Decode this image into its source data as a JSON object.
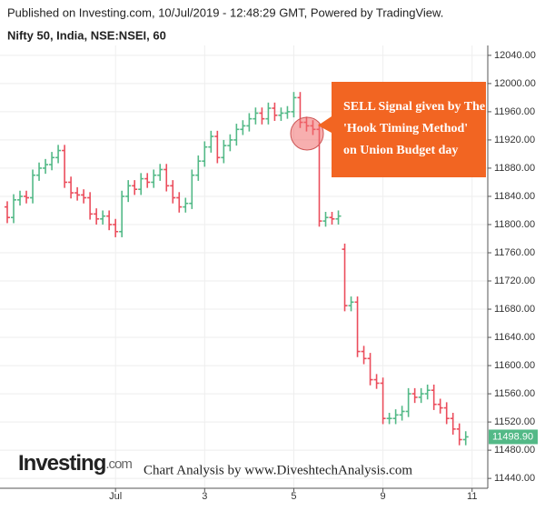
{
  "chart_data": {
    "type": "ohlc",
    "header": "Published on Investing.com, 10/Jul/2019 - 12:48:29 GMT, Powered by TradingView.",
    "title": "Nifty 50, India, NSE:NSEI, 60",
    "annotation": [
      "SELL Signal given by The",
      "'Hook Timing Method'",
      "on Union Budget day"
    ],
    "logo": {
      "main": "Investing",
      "suffix": ".com"
    },
    "footer": "Chart Analysis by www.DiveshtechAnalysis.com",
    "up_color": "#53b987",
    "down_color": "#eb4d5c",
    "categories": [
      null,
      null,
      null,
      null,
      null,
      null,
      null,
      null,
      null,
      null,
      null,
      null,
      null,
      null,
      null,
      null,
      null,
      "Jul",
      null,
      null,
      null,
      null,
      null,
      null,
      null,
      null,
      null,
      null,
      null,
      null,
      null,
      "3",
      null,
      null,
      null,
      null,
      null,
      null,
      null,
      null,
      null,
      null,
      null,
      null,
      null,
      "5",
      null,
      null,
      null,
      null,
      null,
      null,
      null,
      null,
      null,
      null,
      null,
      null,
      null,
      "9",
      null,
      null,
      null,
      null,
      null,
      null,
      null,
      null,
      null,
      null,
      null,
      null,
      null,
      "11"
    ],
    "open": [
      11825,
      11810,
      11835,
      11840,
      11838,
      11870,
      11880,
      11885,
      11895,
      11905,
      11860,
      11845,
      11842,
      11838,
      11815,
      11808,
      11812,
      11800,
      11790,
      11840,
      11855,
      11850,
      11865,
      11860,
      11870,
      11878,
      11855,
      11838,
      11825,
      11830,
      11870,
      11890,
      11910,
      11925,
      11895,
      11912,
      11920,
      11935,
      11940,
      11950,
      11958,
      11950,
      11965,
      11955,
      11958,
      11960,
      11980,
      11945,
      11940,
      11935,
      11805,
      11810,
      11808,
      11765,
      11685,
      11690,
      11620,
      11610,
      11580,
      11575,
      11525,
      11525,
      11530,
      11535,
      11560,
      11555,
      11560,
      11565,
      11545,
      11540,
      11525,
      11510,
      11495,
      null
    ],
    "high": [
      11833,
      11843,
      11848,
      11848,
      11878,
      11888,
      11893,
      11903,
      11913,
      11913,
      11868,
      11853,
      11850,
      11846,
      11823,
      11820,
      11820,
      11808,
      11848,
      11863,
      11863,
      11873,
      11873,
      11878,
      11886,
      11886,
      11863,
      11846,
      11838,
      11878,
      11898,
      11918,
      11933,
      11933,
      11920,
      11928,
      11943,
      11948,
      11958,
      11966,
      11966,
      11973,
      11973,
      11966,
      11968,
      11988,
      11988,
      11953,
      11948,
      11943,
      11818,
      11818,
      11820,
      11773,
      11698,
      11698,
      11628,
      11618,
      11588,
      11583,
      11533,
      11538,
      11543,
      11568,
      11568,
      11568,
      11573,
      11573,
      11553,
      11548,
      11533,
      11518,
      11506.9,
      null
    ],
    "low": [
      11802,
      11802,
      11827,
      11830,
      11830,
      11862,
      11872,
      11877,
      11887,
      11852,
      11837,
      11834,
      11830,
      11807,
      11800,
      11800,
      11792,
      11782,
      11782,
      11832,
      11842,
      11842,
      11852,
      11852,
      11862,
      11847,
      11830,
      11817,
      11817,
      11822,
      11862,
      11882,
      11902,
      11887,
      11887,
      11904,
      11912,
      11927,
      11932,
      11942,
      11942,
      11942,
      11947,
      11947,
      11950,
      11952,
      11937,
      11932,
      11927,
      11797,
      11797,
      11800,
      11800,
      11677,
      11677,
      11612,
      11602,
      11572,
      11567,
      11517,
      11517,
      11517,
      11522,
      11527,
      11547,
      11547,
      11552,
      11537,
      11532,
      11517,
      11502,
      11487,
      11487,
      null
    ],
    "close": [
      11810,
      11835,
      11840,
      11838,
      11870,
      11880,
      11885,
      11895,
      11905,
      11860,
      11845,
      11842,
      11838,
      11815,
      11808,
      11812,
      11800,
      11790,
      11840,
      11855,
      11850,
      11865,
      11860,
      11870,
      11878,
      11855,
      11838,
      11825,
      11830,
      11870,
      11890,
      11910,
      11925,
      11895,
      11912,
      11920,
      11935,
      11940,
      11950,
      11958,
      11950,
      11965,
      11955,
      11958,
      11960,
      11980,
      11945,
      11940,
      11935,
      11805,
      11810,
      11808,
      11812,
      11685,
      11690,
      11620,
      11610,
      11580,
      11575,
      11525,
      11525,
      11530,
      11535,
      11560,
      11555,
      11560,
      11565,
      11545,
      11540,
      11525,
      11510,
      11495,
      11498.9,
      null
    ],
    "last_price": {
      "value": 11498.9,
      "label": "11498.90"
    },
    "ylim": [
      11426,
      12054
    ],
    "yticks": [
      {
        "value": 11440,
        "label": "11440.00"
      },
      {
        "value": 11480,
        "label": "11480.00"
      },
      {
        "value": 11520,
        "label": "11520.00"
      },
      {
        "value": 11560,
        "label": "11560.00"
      },
      {
        "value": 11600,
        "label": "11600.00"
      },
      {
        "value": 11640,
        "label": "11640.00"
      },
      {
        "value": 11680,
        "label": "11680.00"
      },
      {
        "value": 11720,
        "label": "11720.00"
      },
      {
        "value": 11760,
        "label": "11760.00"
      },
      {
        "value": 11800,
        "label": "11800.00"
      },
      {
        "value": 11840,
        "label": "11840.00"
      },
      {
        "value": 11880,
        "label": "11880.00"
      },
      {
        "value": 11920,
        "label": "11920.00"
      },
      {
        "value": 11960,
        "label": "11960.00"
      },
      {
        "value": 12000,
        "label": "12000.00"
      },
      {
        "value": 12040,
        "label": "12040.00"
      }
    ],
    "grid": true
  }
}
